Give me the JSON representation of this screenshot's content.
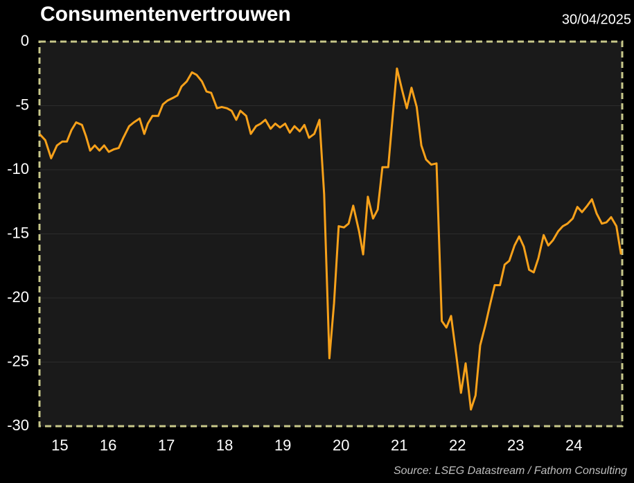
{
  "chart_data": {
    "type": "line",
    "title": "Consumentenvertrouwen",
    "date": "30/04/2025",
    "source": "Source: LSEG Datastream / Fathom Consulting",
    "xlim": [
      15.32,
      25.33
    ],
    "ylim": [
      -30,
      0
    ],
    "yticks": [
      0,
      -5,
      -10,
      -15,
      -20,
      -25,
      -30
    ],
    "xticks": [
      {
        "value": 15.67,
        "label": "15"
      },
      {
        "value": 16.5,
        "label": "16"
      },
      {
        "value": 17.5,
        "label": "17"
      },
      {
        "value": 18.5,
        "label": "18"
      },
      {
        "value": 19.5,
        "label": "19"
      },
      {
        "value": 20.5,
        "label": "20"
      },
      {
        "value": 21.5,
        "label": "21"
      },
      {
        "value": 22.5,
        "label": "22"
      },
      {
        "value": 23.5,
        "label": "23"
      },
      {
        "value": 24.5,
        "label": "24"
      }
    ],
    "grid": true,
    "x": [
      15.32,
      15.42,
      15.52,
      15.62,
      15.71,
      15.79,
      15.87,
      15.95,
      16.05,
      16.12,
      16.19,
      16.27,
      16.35,
      16.43,
      16.51,
      16.6,
      16.68,
      16.76,
      16.86,
      16.94,
      17.04,
      17.12,
      17.18,
      17.26,
      17.36,
      17.44,
      17.52,
      17.61,
      17.69,
      17.76,
      17.85,
      17.94,
      18.02,
      18.11,
      18.19,
      18.27,
      18.37,
      18.45,
      18.54,
      18.62,
      18.7,
      18.77,
      18.87,
      18.95,
      19.04,
      19.12,
      19.2,
      19.29,
      19.37,
      19.45,
      19.54,
      19.62,
      19.7,
      19.79,
      19.87,
      19.95,
      20.04,
      20.13,
      20.21,
      20.3,
      20.38,
      20.46,
      20.55,
      20.63,
      20.71,
      20.81,
      20.88,
      20.96,
      21.05,
      21.13,
      21.21,
      21.31,
      21.38,
      21.46,
      21.55,
      21.63,
      21.71,
      21.8,
      21.88,
      21.96,
      22.05,
      22.14,
      22.23,
      22.31,
      22.39,
      22.48,
      22.56,
      22.64,
      22.73,
      22.81,
      22.89,
      22.98,
      23.06,
      23.14,
      23.23,
      23.31,
      23.39,
      23.48,
      23.56,
      23.64,
      23.73,
      23.81,
      23.89,
      23.98,
      24.06,
      24.14,
      24.23,
      24.31,
      24.39,
      24.48,
      24.56,
      24.64,
      24.73,
      24.81,
      24.89,
      24.98,
      25.06,
      25.14,
      25.23,
      25.31
    ],
    "series": [
      {
        "name": "Consumentenvertrouwen",
        "color": "#f7a11a",
        "values": [
          -7.2,
          -7.7,
          -9.1,
          -8.1,
          -7.8,
          -7.8,
          -6.9,
          -6.3,
          -6.5,
          -7.4,
          -8.5,
          -8.1,
          -8.5,
          -8.1,
          -8.6,
          -8.4,
          -8.3,
          -7.5,
          -6.6,
          -6.3,
          -6.0,
          -7.2,
          -6.4,
          -5.8,
          -5.8,
          -4.9,
          -4.6,
          -4.4,
          -4.2,
          -3.5,
          -3.1,
          -2.4,
          -2.6,
          -3.1,
          -3.9,
          -4.0,
          -5.2,
          -5.1,
          -5.2,
          -5.4,
          -6.1,
          -5.4,
          -5.8,
          -7.2,
          -6.6,
          -6.4,
          -6.1,
          -6.8,
          -6.4,
          -6.7,
          -6.4,
          -7.1,
          -6.6,
          -7.0,
          -6.5,
          -7.5,
          -7.2,
          -6.1,
          -11.9,
          -24.7,
          -20.4,
          -14.4,
          -14.5,
          -14.2,
          -12.8,
          -14.8,
          -16.6,
          -12.1,
          -13.8,
          -13.1,
          -9.8,
          -9.8,
          -6.2,
          -2.1,
          -3.8,
          -5.2,
          -3.6,
          -5.1,
          -8.1,
          -9.2,
          -9.6,
          -9.5,
          -21.8,
          -22.3,
          -21.4,
          -24.5,
          -27.4,
          -25.1,
          -28.7,
          -27.6,
          -23.7,
          -22.1,
          -20.5,
          -19.0,
          -19.0,
          -17.4,
          -17.1,
          -15.9,
          -15.2,
          -16.0,
          -17.8,
          -18.0,
          -16.9,
          -15.1,
          -15.9,
          -15.5,
          -14.8,
          -14.4,
          -14.2,
          -13.8,
          -12.9,
          -13.3,
          -12.8,
          -12.3,
          -13.4,
          -14.2,
          -14.1,
          -13.7,
          -14.4,
          -16.6
        ]
      }
    ]
  }
}
